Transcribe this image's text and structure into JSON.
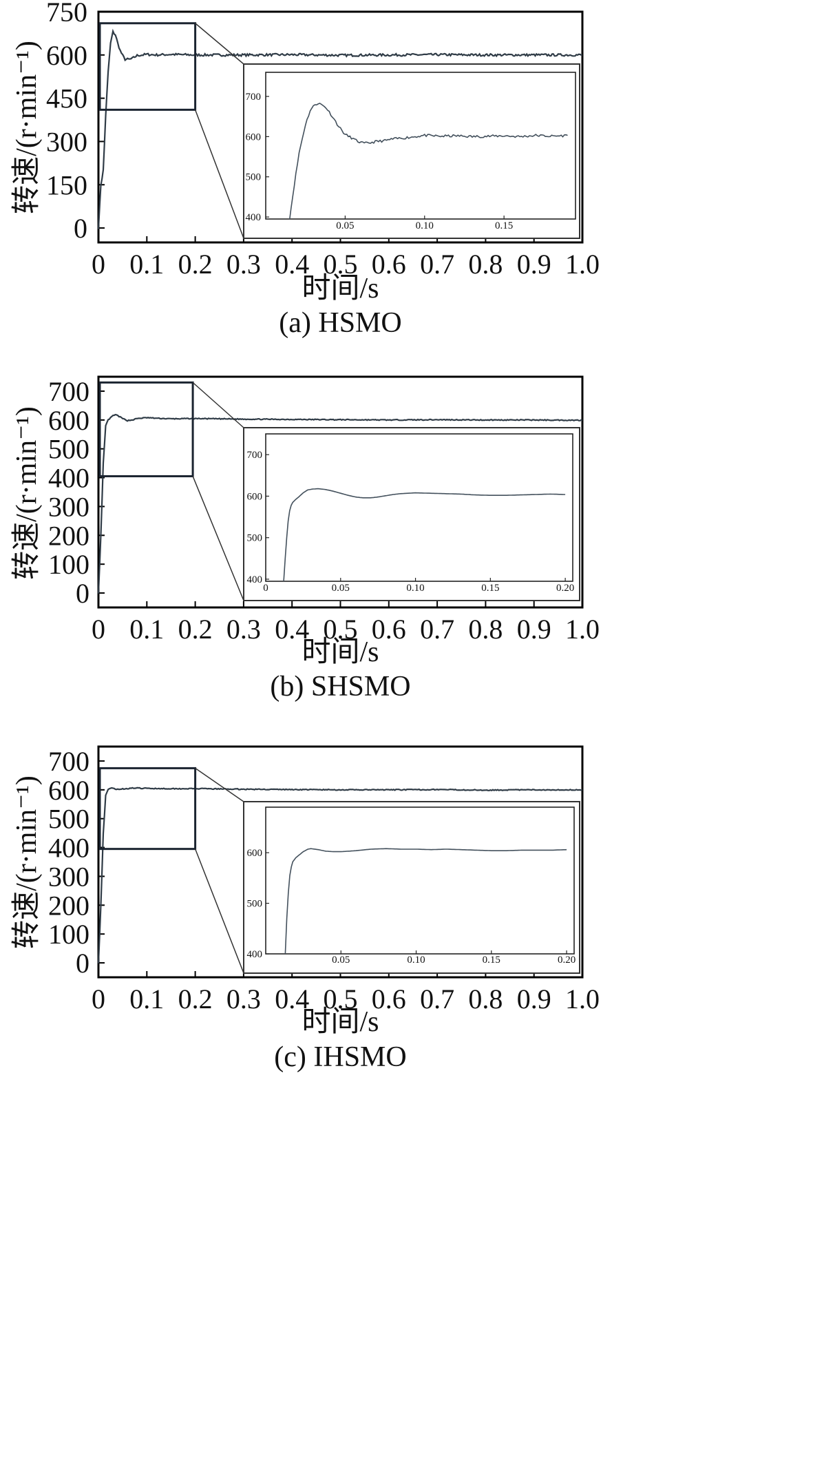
{
  "chart_data": [
    {
      "type": "line",
      "caption": "(a) HSMO",
      "xlabel": "时间/s",
      "ylabel": "转速/(r·min⁻¹)",
      "xlim": [
        0,
        1.0
      ],
      "ylim": [
        -50,
        750
      ],
      "xticks": [
        "0",
        "0.1",
        "0.2",
        "0.3",
        "0.4",
        "0.5",
        "0.6",
        "0.7",
        "0.8",
        "0.9",
        "1.0"
      ],
      "xtick_values": [
        0,
        0.1,
        0.2,
        0.3,
        0.4,
        0.5,
        0.6,
        0.7,
        0.8,
        0.9,
        1.0
      ],
      "yticks": [
        "0",
        "150",
        "300",
        "450",
        "600",
        "750"
      ],
      "ytick_values": [
        0,
        150,
        300,
        450,
        600,
        750
      ],
      "zoom_box": {
        "x": [
          0.0,
          0.2
        ],
        "y": [
          410,
          710
        ]
      },
      "series": [
        {
          "x": [
            0,
            0.005,
            0.01,
            0.015,
            0.02,
            0.025,
            0.03,
            0.035,
            0.04,
            0.045,
            0.05,
            0.055,
            0.06,
            0.065,
            0.07,
            0.08,
            0.09,
            0.1,
            0.12,
            0.15,
            0.2,
            0.3,
            0.4,
            0.5,
            0.6,
            0.7,
            0.8,
            0.9,
            1.0
          ],
          "y": [
            0,
            150,
            200,
            390,
            540,
            640,
            680,
            670,
            640,
            615,
            598,
            585,
            585,
            585,
            588,
            598,
            600,
            602,
            600,
            602,
            600,
            600,
            601,
            599,
            600,
            601,
            600,
            600,
            600
          ],
          "noise": 4
        }
      ],
      "inset": {
        "xlim": [
          0,
          0.195
        ],
        "ylim": [
          395,
          760
        ],
        "xticks": [
          "0.05",
          "0.10",
          "0.15"
        ],
        "xtick_values": [
          0.05,
          0.1,
          0.15
        ],
        "yticks": [
          "400",
          "500",
          "600",
          "700"
        ],
        "ytick_values": [
          400,
          500,
          600,
          700
        ],
        "series": [
          {
            "x": [
              0.015,
              0.018,
              0.021,
              0.025,
              0.028,
              0.031,
              0.033,
              0.035,
              0.038,
              0.042,
              0.046,
              0.05,
              0.054,
              0.058,
              0.062,
              0.066,
              0.07,
              0.075,
              0.08,
              0.09,
              0.1,
              0.11,
              0.12,
              0.13,
              0.14,
              0.15,
              0.16,
              0.17,
              0.18,
              0.19
            ],
            "y": [
              395,
              480,
              560,
              630,
              665,
              680,
              683,
              680,
              672,
              650,
              625,
              605,
              597,
              588,
              583,
              585,
              588,
              590,
              594,
              598,
              603,
              601,
              602,
              600,
              601,
              602,
              600,
              603,
              601,
              603
            ],
            "noise": 3
          }
        ]
      }
    },
    {
      "type": "line",
      "caption": "(b) SHSMO",
      "xlabel": "时间/s",
      "ylabel": "转速/(r·min⁻¹)",
      "xlim": [
        0,
        1.0
      ],
      "ylim": [
        -50,
        750
      ],
      "xticks": [
        "0",
        "0.1",
        "0.2",
        "0.3",
        "0.4",
        "0.5",
        "0.6",
        "0.7",
        "0.8",
        "0.9",
        "1.0"
      ],
      "xtick_values": [
        0,
        0.1,
        0.2,
        0.3,
        0.4,
        0.5,
        0.6,
        0.7,
        0.8,
        0.9,
        1.0
      ],
      "yticks": [
        "0",
        "100",
        "200",
        "300",
        "400",
        "500",
        "600",
        "700"
      ],
      "ytick_values": [
        0,
        100,
        200,
        300,
        400,
        500,
        600,
        700
      ],
      "zoom_box": {
        "x": [
          0.0,
          0.195
        ],
        "y": [
          405,
          730
        ]
      },
      "series": [
        {
          "x": [
            0,
            0.005,
            0.01,
            0.015,
            0.02,
            0.03,
            0.035,
            0.04,
            0.05,
            0.06,
            0.07,
            0.08,
            0.1,
            0.12,
            0.15,
            0.2,
            0.3,
            0.4,
            0.5,
            0.6,
            0.7,
            0.8,
            0.9,
            1.0
          ],
          "y": [
            0,
            200,
            450,
            580,
            600,
            615,
            618,
            615,
            605,
            598,
            600,
            605,
            608,
            606,
            604,
            605,
            603,
            602,
            601,
            600,
            601,
            600,
            600,
            599
          ],
          "noise": 1.5
        }
      ],
      "inset": {
        "xlim": [
          0,
          0.205
        ],
        "ylim": [
          395,
          750
        ],
        "xticks": [
          "0",
          "0.05",
          "0.10",
          "0.15",
          "0.20"
        ],
        "xtick_values": [
          0,
          0.05,
          0.1,
          0.15,
          0.2
        ],
        "yticks": [
          "400",
          "500",
          "600",
          "700"
        ],
        "ytick_values": [
          400,
          500,
          600,
          700
        ],
        "series": [
          {
            "x": [
              0.012,
              0.013,
              0.014,
              0.015,
              0.016,
              0.017,
              0.018,
              0.02,
              0.022,
              0.025,
              0.028,
              0.031,
              0.035,
              0.04,
              0.045,
              0.05,
              0.055,
              0.06,
              0.065,
              0.07,
              0.075,
              0.08,
              0.085,
              0.09,
              0.1,
              0.11,
              0.12,
              0.13,
              0.14,
              0.15,
              0.16,
              0.17,
              0.18,
              0.19,
              0.2
            ],
            "y": [
              395,
              450,
              500,
              540,
              565,
              578,
              585,
              592,
              598,
              608,
              615,
              617,
              618,
              616,
              612,
              607,
              602,
              598,
              596,
              596,
              598,
              601,
              604,
              606,
              608,
              607,
              606,
              605,
              603,
              602,
              602,
              603,
              604,
              605,
              604
            ],
            "noise": 0
          }
        ]
      }
    },
    {
      "type": "line",
      "caption": "(c) IHSMO",
      "xlabel": "时间/s",
      "ylabel": "转速/(r·min⁻¹)",
      "xlim": [
        0,
        1.0
      ],
      "ylim": [
        -50,
        750
      ],
      "xticks": [
        "0",
        "0.1",
        "0.2",
        "0.3",
        "0.4",
        "0.5",
        "0.6",
        "0.7",
        "0.8",
        "0.9",
        "1.0"
      ],
      "xtick_values": [
        0,
        0.1,
        0.2,
        0.3,
        0.4,
        0.5,
        0.6,
        0.7,
        0.8,
        0.9,
        1.0
      ],
      "yticks": [
        "0",
        "100",
        "200",
        "300",
        "400",
        "500",
        "600",
        "700"
      ],
      "ytick_values": [
        0,
        100,
        200,
        300,
        400,
        500,
        600,
        700
      ],
      "zoom_box": {
        "x": [
          0.0,
          0.2
        ],
        "y": [
          395,
          675
        ]
      },
      "series": [
        {
          "x": [
            0,
            0.005,
            0.01,
            0.015,
            0.02,
            0.025,
            0.03,
            0.04,
            0.05,
            0.07,
            0.1,
            0.15,
            0.2,
            0.3,
            0.4,
            0.5,
            0.6,
            0.7,
            0.8,
            0.9,
            1.0
          ],
          "y": [
            0,
            200,
            450,
            580,
            600,
            606,
            605,
            602,
            603,
            606,
            605,
            604,
            604,
            602,
            601,
            600,
            600,
            601,
            599,
            600,
            600
          ],
          "noise": 1.5
        }
      ],
      "inset": {
        "xlim": [
          0,
          0.205
        ],
        "ylim": [
          400,
          690
        ],
        "xticks": [
          "0.05",
          "0.10",
          "0.15",
          "0.20"
        ],
        "xtick_values": [
          0.05,
          0.1,
          0.15,
          0.2
        ],
        "yticks": [
          "400",
          "500",
          "600"
        ],
        "ytick_values": [
          400,
          500,
          600
        ],
        "series": [
          {
            "x": [
              0.013,
              0.014,
              0.015,
              0.016,
              0.017,
              0.018,
              0.02,
              0.022,
              0.025,
              0.028,
              0.03,
              0.035,
              0.04,
              0.045,
              0.05,
              0.06,
              0.07,
              0.08,
              0.09,
              0.1,
              0.11,
              0.12,
              0.13,
              0.14,
              0.15,
              0.16,
              0.17,
              0.18,
              0.19,
              0.2
            ],
            "y": [
              400,
              470,
              520,
              555,
              572,
              582,
              590,
              595,
              602,
              607,
              608,
              606,
              603,
              602,
              602,
              604,
              607,
              608,
              607,
              607,
              606,
              607,
              606,
              605,
              604,
              604,
              605,
              605,
              605,
              606
            ],
            "noise": 0
          }
        ]
      }
    }
  ]
}
